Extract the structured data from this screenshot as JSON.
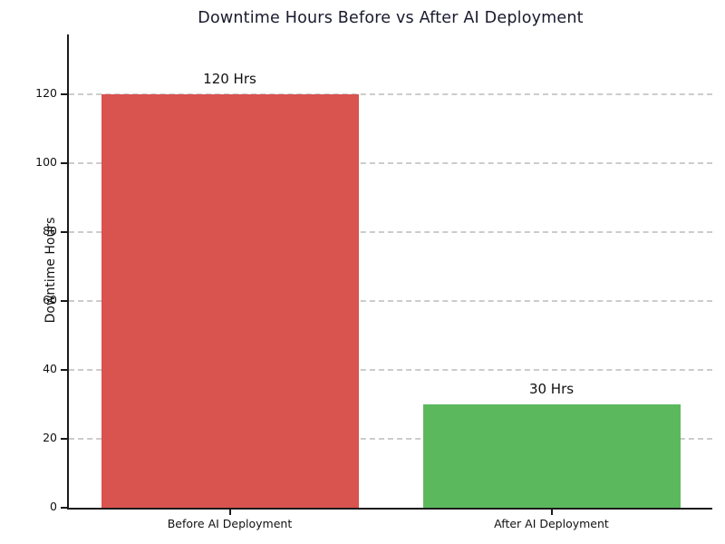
{
  "chart_data": {
    "type": "bar",
    "title": "Downtime Hours Before vs After AI Deployment",
    "xlabel": "",
    "ylabel": "Downtime Hours",
    "categories": [
      "Before AI Deployment",
      "After AI Deployment"
    ],
    "values": [
      120,
      30
    ],
    "bar_labels": [
      "120 Hrs",
      "30 Hrs"
    ],
    "bar_colors": [
      "#d9534f",
      "#5cb85c"
    ],
    "yticks": [
      0,
      20,
      40,
      60,
      80,
      100,
      120
    ],
    "ylim": [
      0,
      137.5
    ],
    "grid": "horizontal dashed",
    "legend_position": "none"
  },
  "colors": {
    "title_text": "#1a1a2e",
    "axis_text": "#111111",
    "gridline": "#cccccc",
    "spine": "#1a1a1a",
    "background": "#ffffff"
  }
}
